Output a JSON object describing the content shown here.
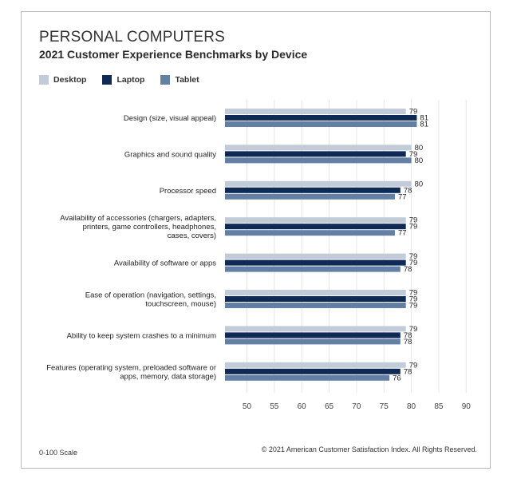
{
  "title": "PERSONAL COMPUTERS",
  "subtitle": "2021 Customer Experience Benchmarks by Device",
  "footer_left": "0-100 Scale",
  "footer_right": "© 2021 American Customer Satisfaction Index. All Rights Reserved.",
  "colors": {
    "Desktop": "#c2cbd8",
    "Laptop": "#0f2a55",
    "Tablet": "#637fa3"
  },
  "chart_data": {
    "type": "bar",
    "orientation": "horizontal",
    "title": "PERSONAL COMPUTERS",
    "subtitle": "2021 Customer Experience Benchmarks by Device",
    "categories": [
      [
        "Design (size, visual appeal)"
      ],
      [
        "Graphics and sound quality"
      ],
      [
        "Processor speed"
      ],
      [
        "Availability of accessories (chargers, adapters,",
        "printers, game controllers, headphones,",
        "cases, covers)"
      ],
      [
        "Availability of software or apps"
      ],
      [
        "Ease of operation (navigation, settings,",
        "touchscreen, mouse)"
      ],
      [
        "Ability to keep system crashes to a minimum"
      ],
      [
        "Features (operating system, preloaded software or",
        "apps, memory, data storage)"
      ]
    ],
    "series": [
      {
        "name": "Desktop",
        "values": [
          79,
          80,
          80,
          79,
          79,
          79,
          79,
          79
        ]
      },
      {
        "name": "Laptop",
        "values": [
          81,
          79,
          78,
          79,
          79,
          79,
          78,
          78
        ]
      },
      {
        "name": "Tablet",
        "values": [
          81,
          80,
          77,
          77,
          78,
          79,
          78,
          76
        ]
      }
    ],
    "xlim": [
      46,
      92
    ],
    "xticks": [
      50,
      55,
      60,
      65,
      70,
      75,
      80,
      85,
      90
    ],
    "legend": "top-left",
    "grid": true
  }
}
